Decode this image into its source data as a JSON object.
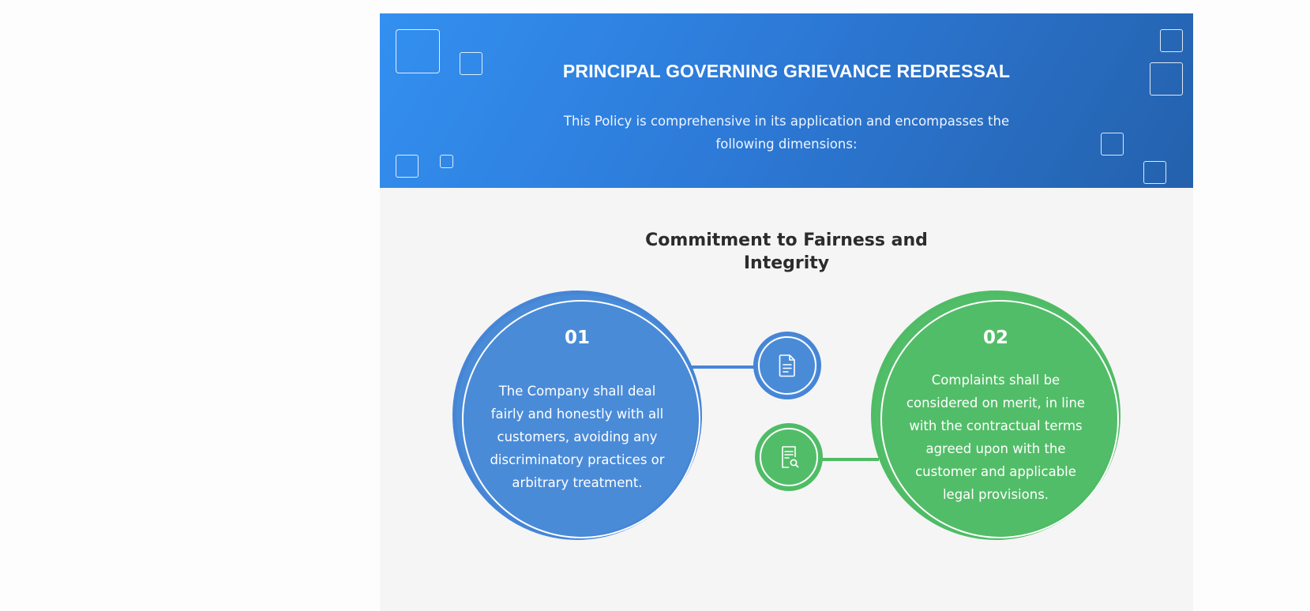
{
  "header": {
    "title": "PRINCIPAL GOVERNING GRIEVANCE REDRESSAL",
    "subtitle": "This Policy is comprehensive in its application and encompasses the following dimensions:"
  },
  "section": {
    "title": "Commitment to Fairness and Integrity"
  },
  "principles": [
    {
      "number": "01",
      "text": "The Company shall deal fairly and honestly with all customers, avoiding any discriminatory practices or arbitrary treatment.",
      "icon": "document-icon",
      "color": "#4a8bd8"
    },
    {
      "number": "02",
      "text": "Complaints shall be considered on merit, in line with the contractual terms agreed upon with the customer and applicable legal provisions.",
      "icon": "document-search-icon",
      "color": "#52bd68"
    }
  ]
}
